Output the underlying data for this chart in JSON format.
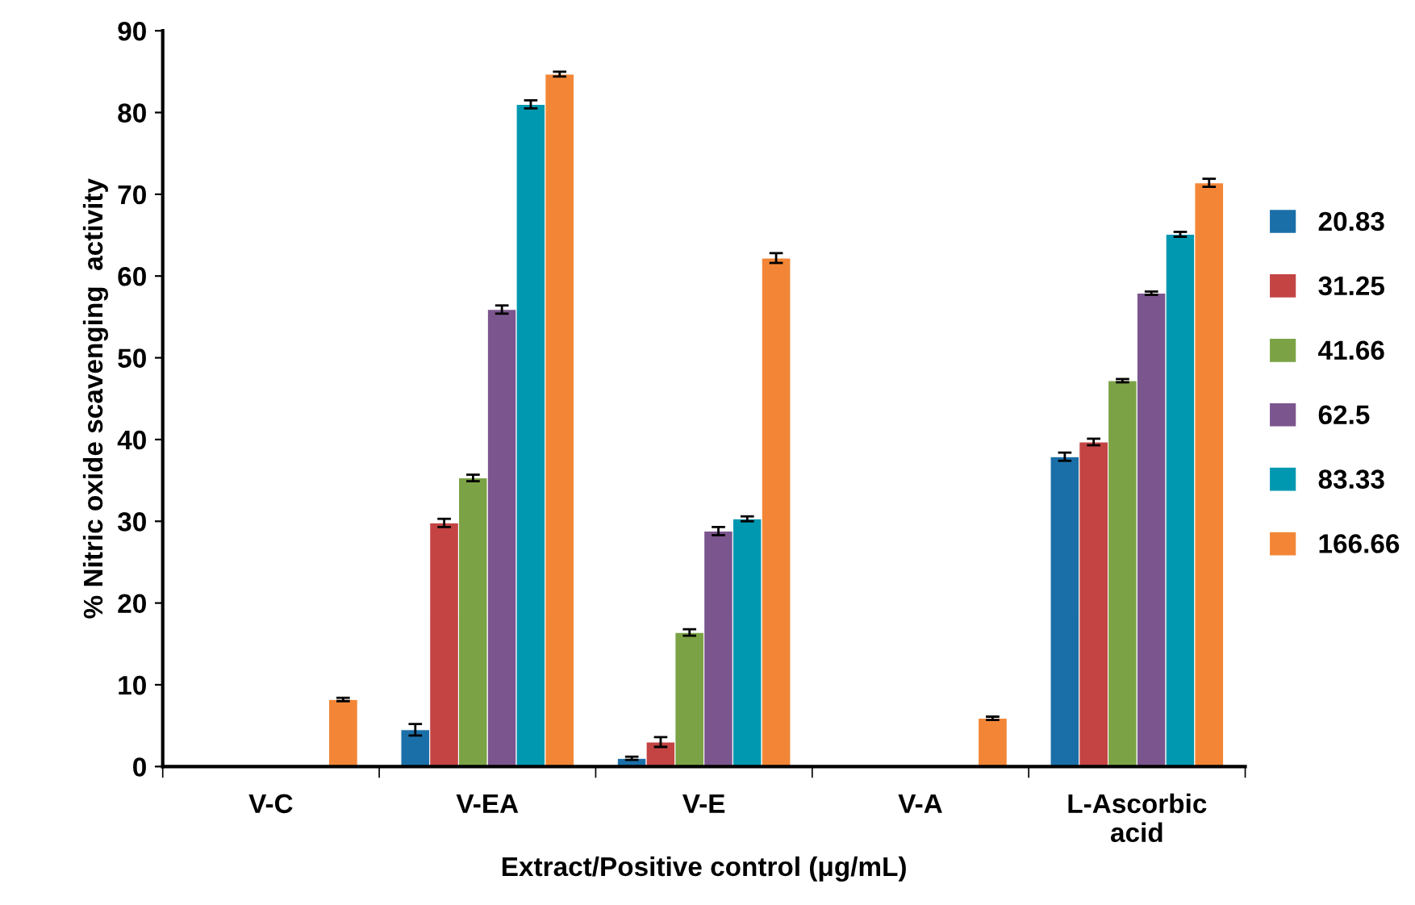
{
  "chart_data": {
    "type": "bar",
    "xlabel": "Extract/Positive control (μg/mL)",
    "ylabel": "% Nitric oxide scavenging  activity",
    "categories": [
      "V-C",
      "V-EA",
      "V-E",
      "V-A",
      "L-Ascorbic\nacid"
    ],
    "ylim": [
      0,
      90
    ],
    "yticks": [
      0,
      10,
      20,
      30,
      40,
      50,
      60,
      70,
      80,
      90
    ],
    "grid": false,
    "legend": "right",
    "series": [
      {
        "name": "20.83",
        "color": "#1b6fa8",
        "values": [
          null,
          4.5,
          1.0,
          null,
          37.9
        ],
        "errors": [
          null,
          0.7,
          0.2,
          null,
          0.5
        ]
      },
      {
        "name": "31.25",
        "color": "#c44444",
        "values": [
          null,
          29.8,
          3.0,
          null,
          39.7
        ],
        "errors": [
          null,
          0.5,
          0.6,
          null,
          0.4
        ]
      },
      {
        "name": "41.66",
        "color": "#7ba345",
        "values": [
          null,
          35.3,
          16.4,
          null,
          47.2
        ],
        "errors": [
          null,
          0.4,
          0.4,
          null,
          0.2
        ]
      },
      {
        "name": "62.5",
        "color": "#7b558e",
        "values": [
          null,
          55.9,
          28.8,
          null,
          57.9
        ],
        "errors": [
          null,
          0.5,
          0.5,
          null,
          0.2
        ]
      },
      {
        "name": "83.33",
        "color": "#0098b0",
        "values": [
          null,
          81.0,
          30.3,
          null,
          65.1
        ],
        "errors": [
          null,
          0.5,
          0.3,
          null,
          0.3
        ]
      },
      {
        "name": "166.66",
        "color": "#f38636",
        "values": [
          8.2,
          84.7,
          62.2,
          5.9,
          71.4
        ],
        "errors": [
          0.2,
          0.3,
          0.6,
          0.2,
          0.5
        ]
      }
    ]
  }
}
